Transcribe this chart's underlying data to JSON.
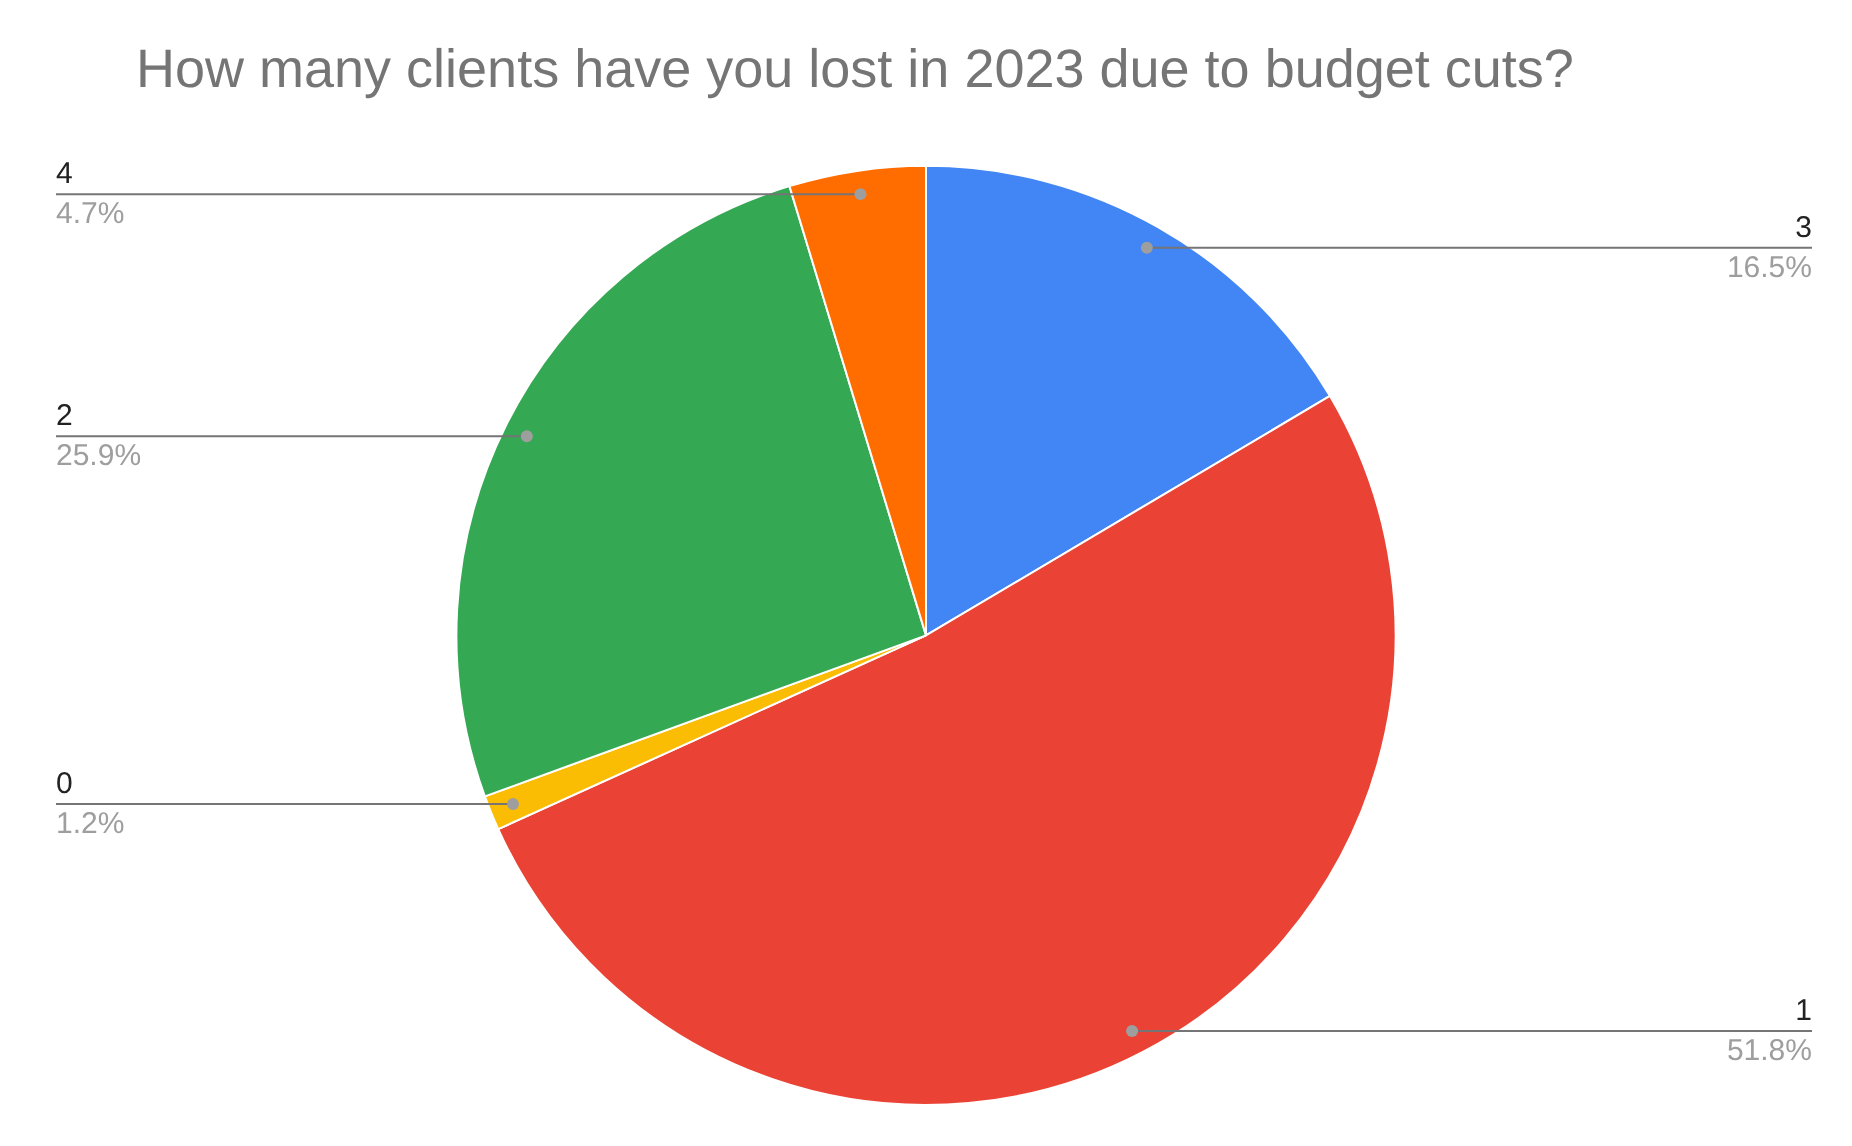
{
  "chart_data": {
    "type": "pie",
    "title": "How many clients have you lost in 2023 due to budget cuts?",
    "categories": [
      "3",
      "1",
      "0",
      "2",
      "4"
    ],
    "values": [
      16.5,
      51.8,
      1.2,
      25.9,
      4.7
    ],
    "value_labels": [
      "16.5%",
      "51.8%",
      "1.2%",
      "25.9%",
      "4.7%"
    ],
    "colors": [
      "#4285f4",
      "#ea4335",
      "#fbbc04",
      "#34a853",
      "#ff6d01"
    ],
    "legend": false
  }
}
